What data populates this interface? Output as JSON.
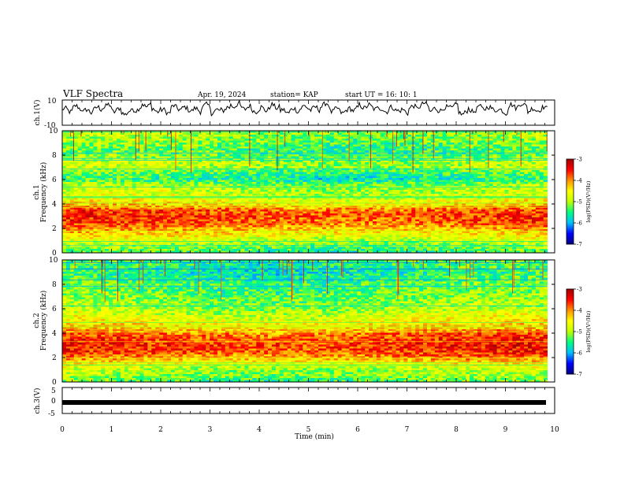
{
  "header": {
    "title": "VLF Spectra",
    "date": "Apr. 19, 2024",
    "station": "station= KAP",
    "start": "start  UT =   16: 10: 1"
  },
  "colors": {
    "spectrogram_scale": [
      "#00007f",
      "#0000ff",
      "#00bfff",
      "#00ff80",
      "#c0ff00",
      "#ffff00",
      "#ff9000",
      "#ff0000",
      "#a00000"
    ],
    "trace": "#000000"
  },
  "chart_data": [
    {
      "type": "line",
      "panel": "ch1-waveform",
      "ylabel": "ch.1(V)",
      "ylim": [
        -10,
        10
      ],
      "y_ticks": [
        "10",
        "-10"
      ],
      "x_range": [
        0,
        9.85
      ],
      "description_series": [
        {
          "values": [
            2,
            4,
            1,
            3,
            5,
            2,
            0,
            3,
            6,
            2,
            1,
            4,
            3,
            2,
            5,
            1,
            3,
            6,
            4,
            2,
            3,
            5,
            1,
            2,
            4,
            3,
            6,
            2,
            1,
            3,
            5,
            4,
            2,
            3,
            1,
            4,
            6,
            2,
            3,
            5,
            0,
            2,
            4,
            3,
            1,
            5,
            6,
            2,
            3,
            4
          ]
        }
      ]
    },
    {
      "type": "heatmap",
      "panel": "ch1-spectrogram",
      "ylabel": "ch.1\nFrequency (kHz)",
      "y_ticks": [
        "0",
        "2",
        "4",
        "6",
        "8",
        "10"
      ],
      "ylim": [
        0,
        10
      ],
      "x_range": [
        0,
        9.85
      ],
      "colorbar": {
        "label": "log(PSD)(V²/Hz)",
        "ticks": [
          "-3",
          "-4",
          "-5",
          "-6",
          "-7"
        ],
        "range": [
          -7,
          -3
        ]
      },
      "frequency_profile_kHz": [
        0,
        0.5,
        1,
        1.5,
        2,
        2.5,
        3,
        3.5,
        4,
        4.5,
        5,
        5.5,
        6,
        6.5,
        7,
        7.5,
        8,
        8.5,
        9,
        9.5,
        10
      ],
      "log_psd_profile": [
        -5.5,
        -5.2,
        -4.9,
        -4.5,
        -4.1,
        -3.8,
        -3.7,
        -3.8,
        -4.4,
        -4.8,
        -4.9,
        -5.0,
        -5.6,
        -5.4,
        -5.0,
        -5.0,
        -5.3,
        -5.4,
        -5.2,
        -5.1,
        -5.0
      ]
    },
    {
      "type": "heatmap",
      "panel": "ch2-spectrogram",
      "ylabel": "ch.2\nFrequency (kHz)",
      "y_ticks": [
        "0",
        "2",
        "4",
        "6",
        "8",
        "10"
      ],
      "ylim": [
        0,
        10
      ],
      "x_range": [
        0,
        9.85
      ],
      "colorbar": {
        "label": "log(PSD)(V²/Hz)",
        "ticks": [
          "-3",
          "-4",
          "-5",
          "-6",
          "-7"
        ],
        "range": [
          -7,
          -3
        ]
      },
      "frequency_profile_kHz": [
        0,
        0.5,
        1,
        1.5,
        2,
        2.5,
        3,
        3.5,
        4,
        4.5,
        5,
        5.5,
        6,
        6.5,
        7,
        7.5,
        8,
        8.5,
        9,
        9.5,
        10
      ],
      "log_psd_profile": [
        -5.4,
        -5.1,
        -5.0,
        -4.6,
        -4.0,
        -3.7,
        -3.6,
        -3.7,
        -3.9,
        -4.3,
        -4.6,
        -4.8,
        -5.0,
        -5.1,
        -5.2,
        -5.3,
        -5.3,
        -5.5,
        -5.6,
        -5.5,
        -5.4
      ]
    },
    {
      "type": "line",
      "panel": "ch3-waveform",
      "ylabel": "ch.3(V)",
      "ylim": [
        -5,
        5
      ],
      "y_ticks": [
        "5",
        "0",
        "-5"
      ],
      "x_range": [
        0,
        9.85
      ],
      "level": 0
    }
  ],
  "xaxis": {
    "label": "Time (min)",
    "ticks": [
      "0",
      "1",
      "2",
      "3",
      "4",
      "5",
      "6",
      "7",
      "8",
      "9",
      "10"
    ],
    "range": [
      0,
      10
    ]
  }
}
